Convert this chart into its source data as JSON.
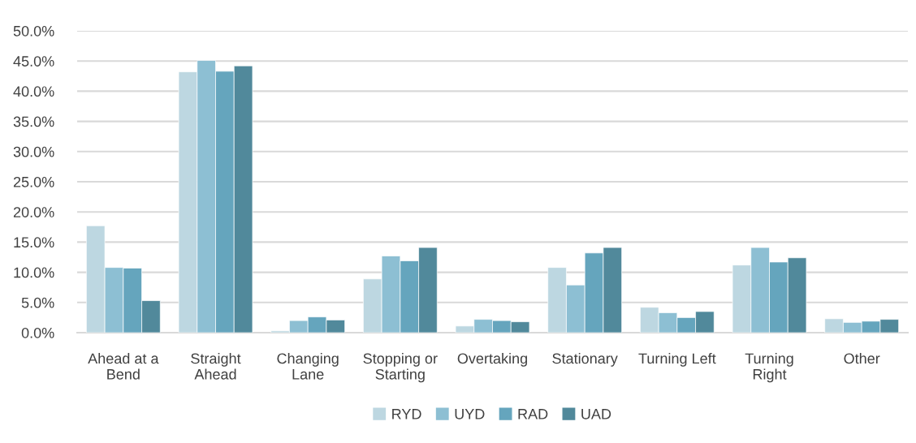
{
  "chart_data": {
    "type": "bar",
    "categories": [
      "Ahead at a\nBend",
      "Straight\nAhead",
      "Changing\nLane",
      "Stopping or\nStarting",
      "Overtaking",
      "Stationary",
      "Turning Left",
      "Turning\nRight",
      "Other"
    ],
    "series": [
      {
        "name": "RYD",
        "color": "#bdd7e1",
        "values": [
          17.7,
          43.2,
          0.3,
          8.9,
          1.1,
          10.8,
          4.2,
          11.2,
          2.3
        ]
      },
      {
        "name": "UYD",
        "color": "#8dbfd3",
        "values": [
          10.8,
          45.1,
          2.0,
          12.7,
          2.2,
          7.9,
          3.3,
          14.1,
          1.7
        ]
      },
      {
        "name": "RAD",
        "color": "#65a5bd",
        "values": [
          10.7,
          43.3,
          2.6,
          11.9,
          2.0,
          13.2,
          2.5,
          11.7,
          1.9
        ]
      },
      {
        "name": "UAD",
        "color": "#51899b",
        "values": [
          5.3,
          44.2,
          2.1,
          14.1,
          1.8,
          14.1,
          3.5,
          12.4,
          2.2
        ]
      }
    ],
    "ylim": [
      0,
      50
    ],
    "yticks": [
      {
        "value": 0,
        "label": "0.0%"
      },
      {
        "value": 5,
        "label": "5.0%"
      },
      {
        "value": 10,
        "label": "10.0%"
      },
      {
        "value": 15,
        "label": "15.0%"
      },
      {
        "value": 20,
        "label": "20.0%"
      },
      {
        "value": 25,
        "label": "25.0%"
      },
      {
        "value": 30,
        "label": "30.0%"
      },
      {
        "value": 35,
        "label": "35.0%"
      },
      {
        "value": 40,
        "label": "40.0%"
      },
      {
        "value": 45,
        "label": "45.0%"
      },
      {
        "value": 50,
        "label": "50.0%"
      }
    ],
    "grid": "y",
    "legend": "bottom"
  }
}
